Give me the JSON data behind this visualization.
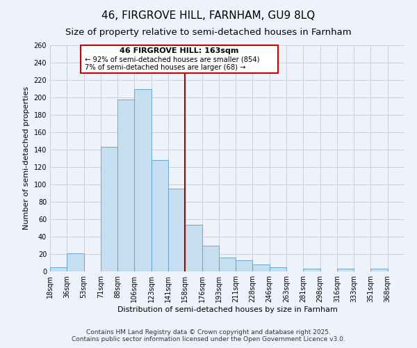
{
  "title": "46, FIRGROVE HILL, FARNHAM, GU9 8LQ",
  "subtitle": "Size of property relative to semi-detached houses in Farnham",
  "xlabel": "Distribution of semi-detached houses by size in Farnham",
  "ylabel": "Number of semi-detached properties",
  "bin_labels": [
    "18sqm",
    "36sqm",
    "53sqm",
    "71sqm",
    "88sqm",
    "106sqm",
    "123sqm",
    "141sqm",
    "158sqm",
    "176sqm",
    "193sqm",
    "211sqm",
    "228sqm",
    "246sqm",
    "263sqm",
    "281sqm",
    "298sqm",
    "316sqm",
    "333sqm",
    "351sqm",
    "368sqm"
  ],
  "bar_heights": [
    5,
    21,
    0,
    143,
    198,
    210,
    128,
    95,
    54,
    30,
    16,
    13,
    8,
    5,
    0,
    3,
    0,
    3,
    0,
    3,
    0
  ],
  "bar_color": "#c5dff0",
  "bar_edge_color": "#5a9fc8",
  "vline_x_bin": 8,
  "annotation_title": "46 FIRGROVE HILL: 163sqm",
  "annotation_line1": "← 92% of semi-detached houses are smaller (854)",
  "annotation_line2": "7% of semi-detached houses are larger (68) →",
  "annotation_box_color": "#ffffff",
  "annotation_box_edge": "#cc0000",
  "vline_color": "#aa0000",
  "ylim": [
    0,
    260
  ],
  "yticks": [
    0,
    20,
    40,
    60,
    80,
    100,
    120,
    140,
    160,
    180,
    200,
    220,
    240,
    260
  ],
  "footer1": "Contains HM Land Registry data © Crown copyright and database right 2025.",
  "footer2": "Contains public sector information licensed under the Open Government Licence v3.0.",
  "bg_color": "#eef2fa",
  "grid_color": "#c8d0e0",
  "title_fontsize": 11,
  "subtitle_fontsize": 9.5,
  "axis_label_fontsize": 8,
  "tick_fontsize": 7,
  "footer_fontsize": 6.5
}
